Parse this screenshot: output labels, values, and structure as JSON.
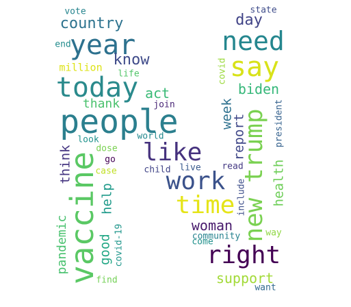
{
  "words": [
    {
      "text": "people",
      "color": "#2b7f8e",
      "vertical": false
    },
    {
      "text": "vaccine",
      "color": "#5ac864",
      "vertical": true
    },
    {
      "text": "today",
      "color": "#2a8a8c",
      "vertical": false
    },
    {
      "text": "new trump",
      "color": "#7ad151",
      "vertical": true
    },
    {
      "text": "year",
      "color": "#2d718e",
      "vertical": false
    },
    {
      "text": "need",
      "color": "#24868e",
      "vertical": false
    },
    {
      "text": "say",
      "color": "#d8e219",
      "vertical": false
    },
    {
      "text": "right",
      "color": "#440154",
      "vertical": false
    },
    {
      "text": "work",
      "color": "#3b528b",
      "vertical": false
    },
    {
      "text": "like",
      "color": "#46327e",
      "vertical": false
    },
    {
      "text": "time",
      "color": "#e5e419",
      "vertical": false
    },
    {
      "text": "country",
      "color": "#2c728e",
      "vertical": false
    },
    {
      "text": "know",
      "color": "#3e4a89",
      "vertical": false
    },
    {
      "text": "day",
      "color": "#414487",
      "vertical": false
    },
    {
      "text": "biden",
      "color": "#35b779",
      "vertical": false
    },
    {
      "text": "act",
      "color": "#3aba76",
      "vertical": false
    },
    {
      "text": "thank",
      "color": "#4ac16d",
      "vertical": false
    },
    {
      "text": "million",
      "color": "#dde318",
      "vertical": false
    },
    {
      "text": "woman",
      "color": "#481a6c",
      "vertical": false
    },
    {
      "text": "support",
      "color": "#a2da37",
      "vertical": false
    },
    {
      "text": "health",
      "color": "#6ece58",
      "vertical": true
    },
    {
      "text": "report",
      "color": "#3f4788",
      "vertical": true
    },
    {
      "text": "week",
      "color": "#2d708e",
      "vertical": true
    },
    {
      "text": "good",
      "color": "#22a785",
      "vertical": true
    },
    {
      "text": "help",
      "color": "#1f9a8a",
      "vertical": true
    },
    {
      "text": "think",
      "color": "#453581",
      "vertical": true
    },
    {
      "text": "pandemic",
      "color": "#48c16e",
      "vertical": true
    },
    {
      "text": "covid-19",
      "color": "#1f968b",
      "vertical": true
    },
    {
      "text": "covid",
      "color": "#9bd93c",
      "vertical": true
    },
    {
      "text": "include",
      "color": "#3d4e8a",
      "vertical": true
    },
    {
      "text": "president",
      "color": "#34618d",
      "vertical": true
    },
    {
      "text": "vote",
      "color": "#25848e",
      "vertical": false
    },
    {
      "text": "state",
      "color": "#3e4c8a",
      "vertical": false
    },
    {
      "text": "end",
      "color": "#228c8d",
      "vertical": false
    },
    {
      "text": "life",
      "color": "#52c569",
      "vertical": false
    },
    {
      "text": "join",
      "color": "#482576",
      "vertical": false
    },
    {
      "text": "world",
      "color": "#23898e",
      "vertical": false
    },
    {
      "text": "look",
      "color": "#20928c",
      "vertical": false
    },
    {
      "text": "dose",
      "color": "#7ad151",
      "vertical": false
    },
    {
      "text": "go",
      "color": "#440154",
      "vertical": false
    },
    {
      "text": "case",
      "color": "#c0df25",
      "vertical": false
    },
    {
      "text": "child",
      "color": "#414487",
      "vertical": false
    },
    {
      "text": "live",
      "color": "#38598c",
      "vertical": false
    },
    {
      "text": "read",
      "color": "#443983",
      "vertical": false
    },
    {
      "text": "community",
      "color": "#26828e",
      "vertical": false
    },
    {
      "text": "come",
      "color": "#21918c",
      "vertical": false
    },
    {
      "text": "way",
      "color": "#8fd744",
      "vertical": false
    },
    {
      "text": "find",
      "color": "#73d056",
      "vertical": false
    },
    {
      "text": "want",
      "color": "#31688e",
      "vertical": false
    }
  ]
}
